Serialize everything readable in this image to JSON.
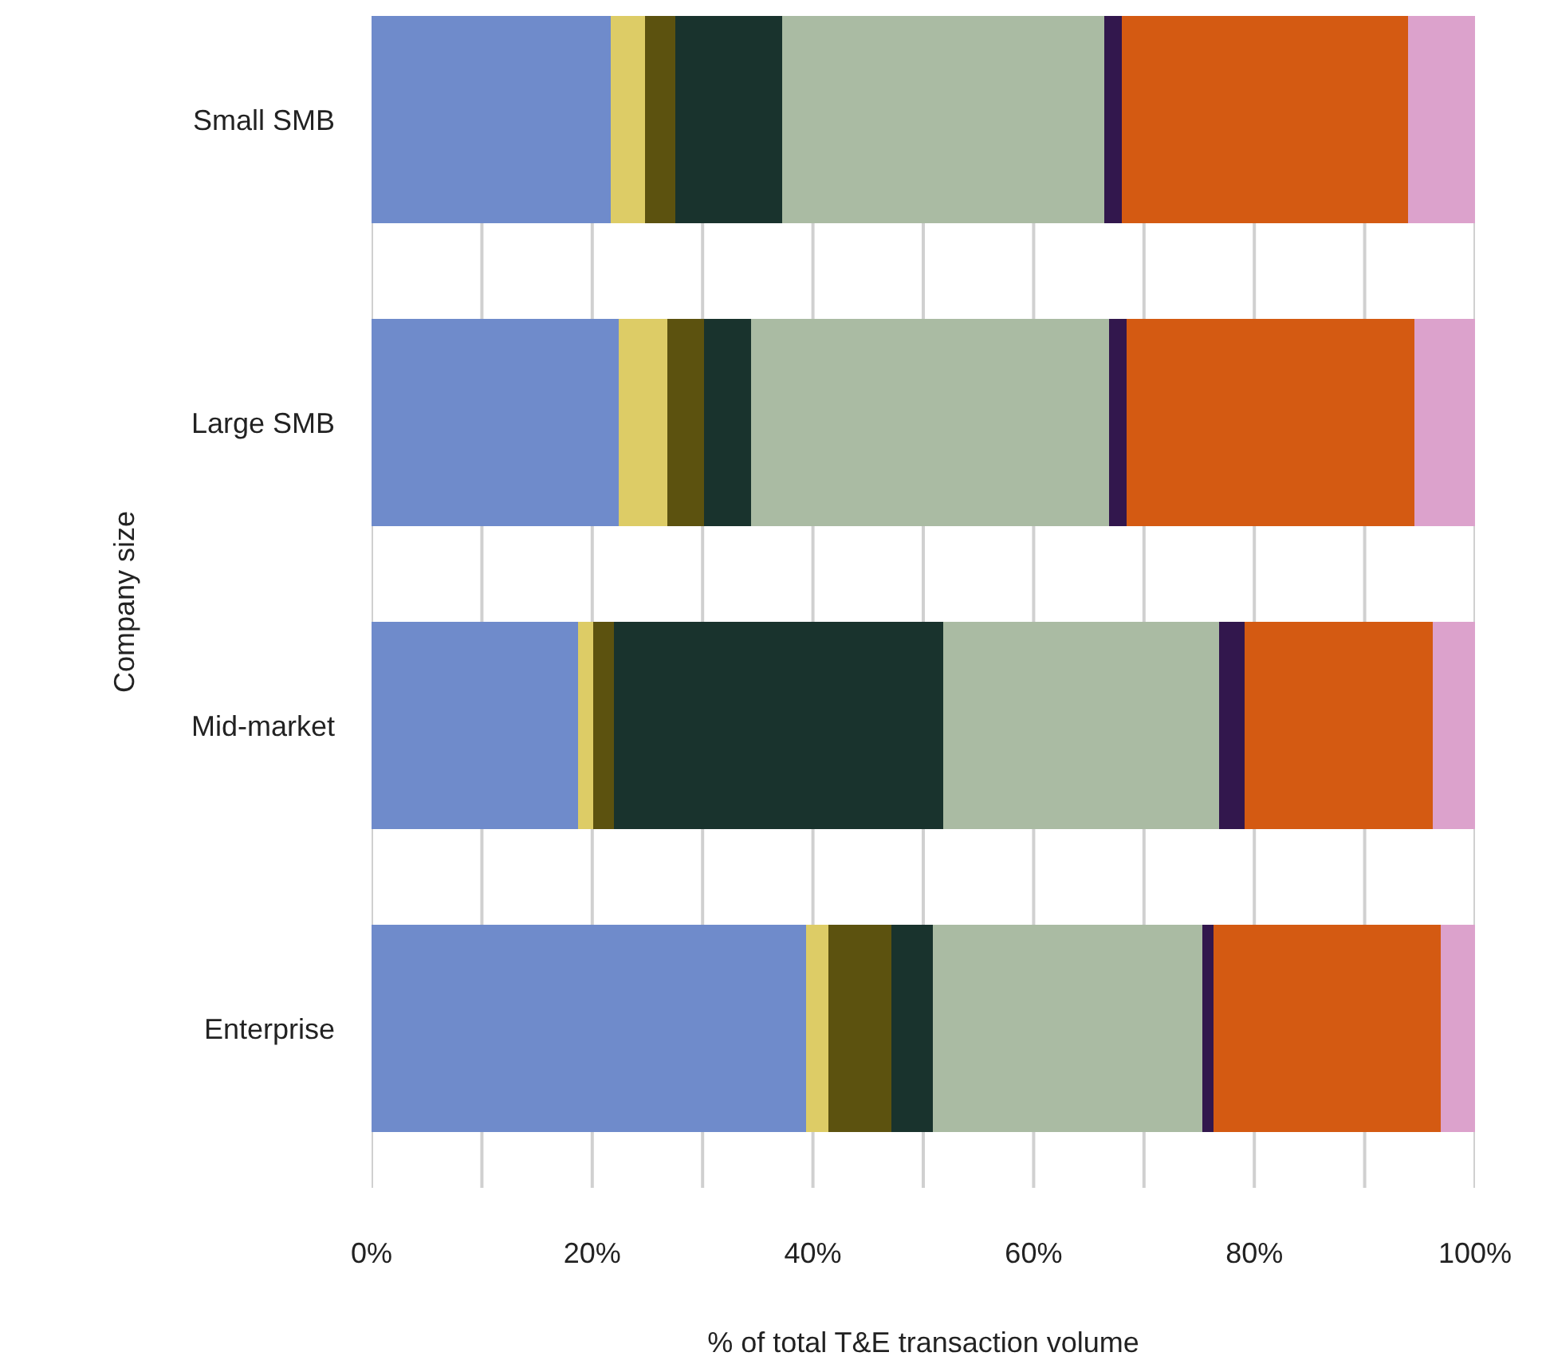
{
  "chart_data": {
    "type": "bar",
    "orientation": "horizontal",
    "stacked": true,
    "categories": [
      "Small SMB",
      "Large SMB",
      "Mid-market",
      "Enterprise"
    ],
    "xlabel": "% of total T&E transaction volume",
    "ylabel": "Company size",
    "series": [
      {
        "color": "#6f8bcb",
        "values": [
          21.7,
          22.4,
          18.7,
          39.4
        ]
      },
      {
        "color": "#ddcc66",
        "values": [
          3.1,
          4.4,
          1.4,
          2.0
        ]
      },
      {
        "color": "#5c520f",
        "values": [
          2.7,
          3.3,
          1.9,
          5.7
        ]
      },
      {
        "color": "#19332d",
        "values": [
          9.7,
          4.3,
          29.8,
          3.8
        ]
      },
      {
        "color": "#aabba3",
        "values": [
          29.2,
          32.4,
          25.0,
          24.4
        ]
      },
      {
        "color": "#32174d",
        "values": [
          1.6,
          1.6,
          2.3,
          1.0
        ]
      },
      {
        "color": "#d45a12",
        "values": [
          25.9,
          26.1,
          17.1,
          20.6
        ]
      },
      {
        "color": "#dca2cc",
        "values": [
          6.1,
          5.5,
          3.8,
          3.1
        ]
      }
    ],
    "xlim": [
      0,
      100
    ],
    "xticks": [
      {
        "value": 0,
        "label": "0%"
      },
      {
        "value": 10,
        "label": null
      },
      {
        "value": 20,
        "label": "20%"
      },
      {
        "value": 30,
        "label": null
      },
      {
        "value": 40,
        "label": "40%"
      },
      {
        "value": 50,
        "label": null
      },
      {
        "value": 60,
        "label": "60%"
      },
      {
        "value": 70,
        "label": null
      },
      {
        "value": 80,
        "label": "80%"
      },
      {
        "value": 90,
        "label": null
      },
      {
        "value": 100,
        "label": "100%"
      }
    ],
    "grid": "x"
  }
}
